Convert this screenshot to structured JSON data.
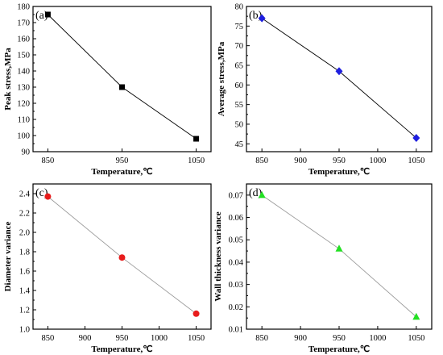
{
  "chart_data": [
    {
      "type": "line",
      "panel_label": "(a)",
      "xlabel": "Temperature,℃",
      "ylabel": "Peak stress,MPa",
      "x": [
        850,
        950,
        1050
      ],
      "xticks": [
        850,
        950,
        1050
      ],
      "xlim": [
        830,
        1070
      ],
      "ylim": [
        90,
        180
      ],
      "yticks": [
        90,
        100,
        110,
        120,
        130,
        140,
        150,
        160,
        170,
        180
      ],
      "ydecimals": 0,
      "series": [
        {
          "values": [
            175,
            130,
            98
          ],
          "marker": "square",
          "color": "#000000",
          "line_color": "#000000"
        }
      ]
    },
    {
      "type": "line",
      "panel_label": "(b)",
      "xlabel": "Temperature,℃",
      "ylabel": "Average stress,MPa",
      "x": [
        850,
        950,
        1050
      ],
      "xticks": [
        850,
        900,
        950,
        1000,
        1050
      ],
      "xlim": [
        830,
        1070
      ],
      "ylim": [
        43,
        80
      ],
      "yticks": [
        45,
        50,
        55,
        60,
        65,
        70,
        75,
        80
      ],
      "ydecimals": 0,
      "series": [
        {
          "values": [
            77,
            63.5,
            46.5
          ],
          "marker": "diamond",
          "color": "#1f1fe0",
          "line_color": "#000000"
        }
      ]
    },
    {
      "type": "line",
      "panel_label": "(c)",
      "xlabel": "Temperature,℃",
      "ylabel": "Diameter variance",
      "x": [
        850,
        950,
        1050
      ],
      "xticks": [
        850,
        900,
        950,
        1000,
        1050
      ],
      "xlim": [
        830,
        1070
      ],
      "ylim": [
        1.0,
        2.5
      ],
      "yticks": [
        1.0,
        1.2,
        1.4,
        1.6,
        1.8,
        2.0,
        2.2,
        2.4
      ],
      "ydecimals": 1,
      "series": [
        {
          "values": [
            2.37,
            1.74,
            1.16
          ],
          "marker": "circle",
          "color": "#e81c1c",
          "line_color": "#9a9a9a"
        }
      ]
    },
    {
      "type": "line",
      "panel_label": "(d)",
      "xlabel": "Temperature,℃",
      "ylabel": "Wall thickness  variance",
      "x": [
        850,
        950,
        1050
      ],
      "xticks": [
        850,
        900,
        950,
        1000,
        1050
      ],
      "xlim": [
        830,
        1070
      ],
      "ylim": [
        0.01,
        0.075
      ],
      "yticks": [
        0.01,
        0.02,
        0.03,
        0.04,
        0.05,
        0.06,
        0.07
      ],
      "ydecimals": 2,
      "series": [
        {
          "values": [
            0.07,
            0.046,
            0.0155
          ],
          "marker": "triangle",
          "color": "#22e022",
          "line_color": "#9a9a9a"
        }
      ]
    }
  ]
}
